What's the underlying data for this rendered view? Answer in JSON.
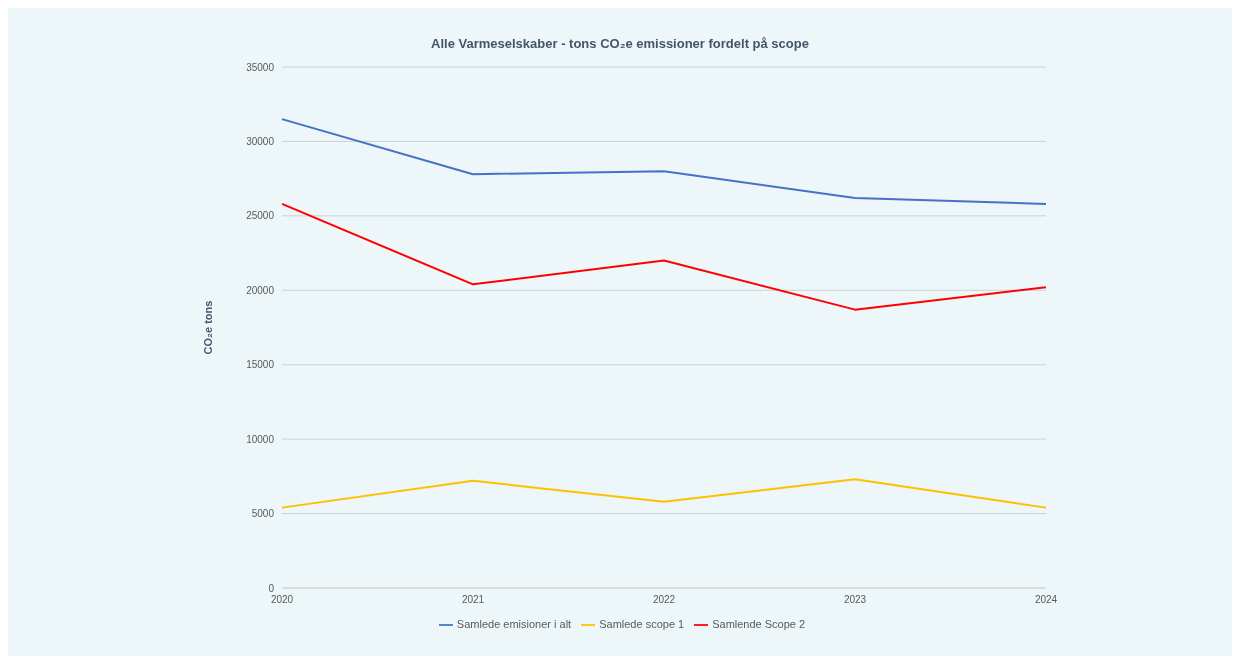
{
  "chart_data": {
    "type": "line",
    "title": "Alle Varmeselskaber - tons CO₂e emissioner fordelt på scope",
    "ylabel": "CO₂e tons",
    "categories": [
      "2020",
      "2021",
      "2022",
      "2023",
      "2024"
    ],
    "series": [
      {
        "name": "Samlede scope 1",
        "color": "#ffc000",
        "values": [
          5400,
          7200,
          5800,
          7300,
          5400
        ]
      },
      {
        "name": "Samlende Scope 2",
        "color": "#ff0000",
        "values": [
          25800,
          20400,
          22000,
          18700,
          20200
        ]
      },
      {
        "name": "Samlede emisioner i alt",
        "color": "#4472c4",
        "values": [
          31500,
          27800,
          28000,
          26200,
          25800
        ]
      }
    ],
    "ylim": [
      0,
      35000
    ],
    "yticks": [
      0,
      5000,
      10000,
      15000,
      20000,
      25000,
      30000,
      35000
    ],
    "grid": "y",
    "legend": "bottom",
    "marker": "none"
  }
}
